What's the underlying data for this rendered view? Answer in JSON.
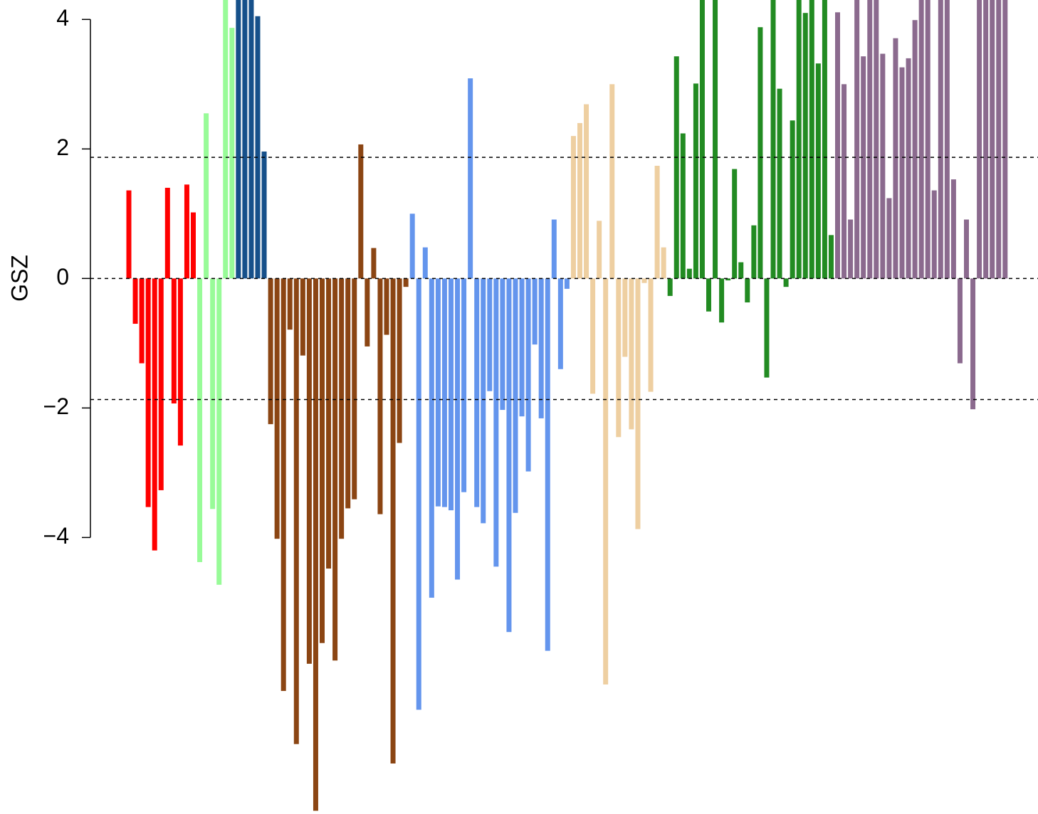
{
  "chart_data": {
    "type": "bar",
    "ylabel": "GSZ",
    "ylim": [
      -8.27,
      4.3
    ],
    "yticks": [
      {
        "value": -4,
        "label": "−4"
      },
      {
        "value": -2,
        "label": "−2"
      },
      0,
      2,
      4
    ],
    "reference_lines": [
      -1.87,
      0,
      1.87
    ],
    "series": [
      {
        "color": "#ff0000",
        "values": [
          1.36,
          -0.7,
          -1.31,
          -3.53,
          -4.2,
          -3.27,
          1.4,
          -1.93,
          -2.58,
          1.45,
          1.02
        ]
      },
      {
        "color": "#98fb98",
        "values": [
          -4.38,
          2.55,
          -3.56,
          -4.73,
          4.5,
          3.87
        ]
      },
      {
        "color": "#16508a",
        "values": [
          4.5,
          4.5,
          4.5,
          4.05,
          1.96
        ]
      },
      {
        "color": "#8b4513",
        "values": [
          -2.25,
          -4.02,
          -6.37,
          -0.79,
          -7.19,
          -1.19,
          -5.95,
          -8.22,
          -5.63,
          -4.48,
          -5.9,
          -4.02,
          -3.55,
          -3.41,
          2.07,
          -1.05,
          0.47,
          -3.64,
          -0.87,
          -7.49,
          -2.54,
          -0.13
        ]
      },
      {
        "color": "#6495ed",
        "values": [
          1.0,
          -6.66,
          0.48,
          -4.93,
          -3.52,
          -3.53,
          -3.58,
          -4.65,
          -3.3,
          3.09,
          -3.53,
          -3.78,
          -1.74,
          -4.45,
          -2.03,
          -5.46,
          -3.62,
          -2.13,
          -2.98,
          -1.02,
          -2.16,
          -5.75,
          0.91,
          -1.4,
          -0.16
        ]
      },
      {
        "color": "#eecfa1",
        "values": [
          2.2,
          2.4,
          2.69,
          -1.78,
          0.89,
          -6.27,
          3.0,
          -2.45,
          -1.21,
          -2.33,
          -3.87,
          -0.07,
          -1.75,
          1.74,
          0.48
        ]
      },
      {
        "color": "#228b22",
        "values": [
          -0.27,
          3.43,
          2.24,
          0.15,
          3.01,
          4.5,
          -0.51,
          4.5,
          -0.68,
          -0.03,
          1.69,
          0.25,
          -0.37,
          0.82,
          3.88,
          -1.53,
          4.5,
          2.93,
          -0.13,
          2.44,
          4.5,
          4.1,
          4.5,
          3.32,
          4.5,
          0.67
        ]
      },
      {
        "color": "#8b6a8e",
        "values": [
          4.11,
          3.0,
          0.91,
          4.5,
          3.43,
          4.5,
          4.5,
          3.47,
          1.24,
          3.71,
          3.26,
          3.4,
          3.99,
          4.5,
          4.5,
          1.36,
          4.5,
          4.5,
          1.53,
          -1.31,
          0.91,
          -2.02,
          4.5,
          4.5,
          4.5,
          4.5,
          4.5
        ]
      }
    ]
  }
}
